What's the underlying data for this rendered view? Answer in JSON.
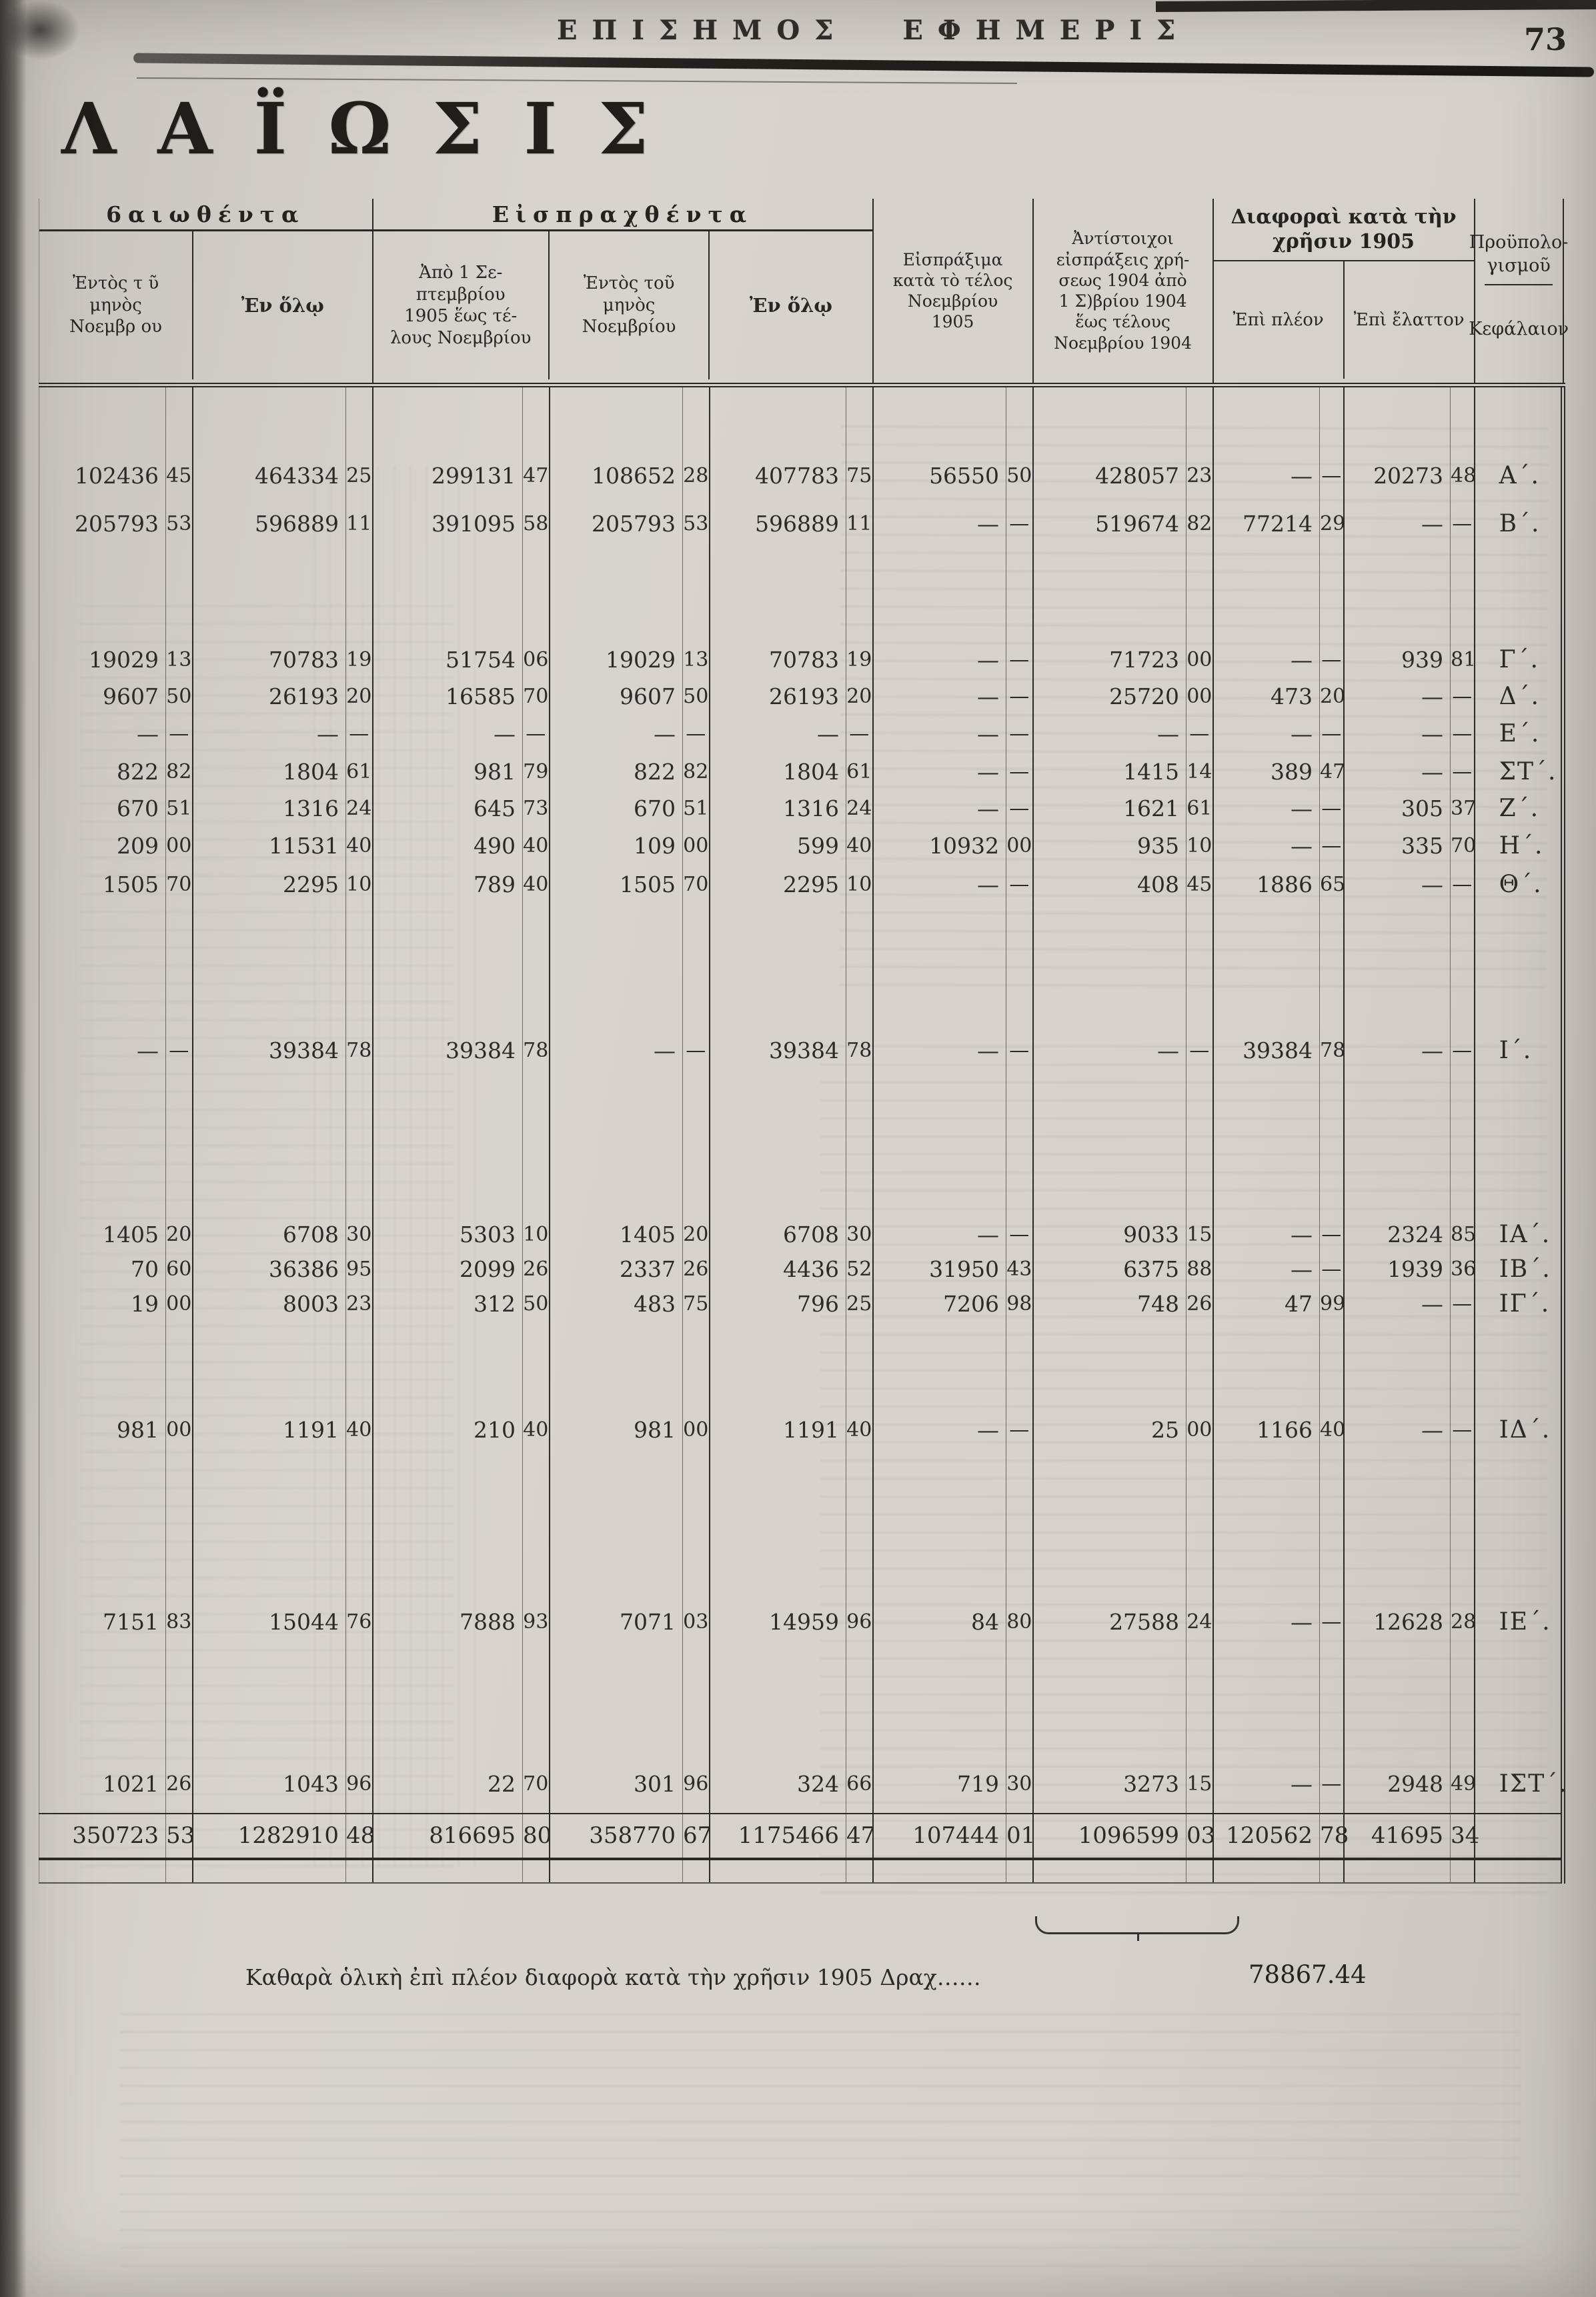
{
  "page": {
    "masthead": "ΕΠΙΣΗΜΟΣ ΕΦΗΜΕΡΙΣ",
    "page_number": "73",
    "title": "ΛΑΪΩΣΙΣ"
  },
  "table": {
    "group_certified": "6αιωθέντα",
    "group_collected": "Εἰσπραχθέντα",
    "col_within_month_certified": "Ἐντὸς τ ῦ\nμηνὸς\nΝοεμβρ ου",
    "col_total_certified": "Ἐν ὅλῳ",
    "col_since_september": "Ἀπὸ 1 Σε-\nπτεμβρίου\n1905 ἕως τέ-\nλους Νοεμβρίου",
    "col_within_month_collected": "Ἐντὸς τοῦ\nμηνὸς\nΝοεμβρίου",
    "col_total_collected": "Ἐν ὅλῳ",
    "col_collectible": "Εἰσπράξιμα\nκατὰ τὸ τέλος\nΝοεμβρίου\n1905",
    "col_corresponding_1904": "Ἀντίστοιχοι\nεἰσπράξεις χρή-\nσεως 1904 ἀπὸ\n1 Σ)βρίου 1904\nἕως τέλους\nΝοεμβρίου 1904",
    "group_differences": "Διαφοραὶ κατὰ τὴν\nχρῆσιν 1905",
    "col_surplus": "Ἐπὶ πλέον",
    "col_deficit": "Ἐπὶ ἔλαττον",
    "col_budget": "Προϋπολο-\nγισμοῦ",
    "col_chapter": "Κεφάλαιον",
    "rows": [
      {
        "cells": [
          [
            "102436",
            "45"
          ],
          [
            "464334",
            "25"
          ],
          [
            "299131",
            "47"
          ],
          [
            "108652",
            "28"
          ],
          [
            "407783",
            "75"
          ],
          [
            "56550",
            "50"
          ],
          [
            "428057",
            "23"
          ],
          [
            "—",
            "—"
          ],
          [
            "20273",
            "48"
          ]
        ],
        "chapter": "Α΄.",
        "total": false
      },
      {
        "cells": [
          [
            "205793",
            "53"
          ],
          [
            "596889",
            "11"
          ],
          [
            "391095",
            "58"
          ],
          [
            "205793",
            "53"
          ],
          [
            "596889",
            "11"
          ],
          [
            "—",
            "—"
          ],
          [
            "519674",
            "82"
          ],
          [
            "77214",
            "29"
          ],
          [
            "—",
            "—"
          ]
        ],
        "chapter": "Β΄.",
        "total": false
      },
      {
        "cells": [
          [
            "19029",
            "13"
          ],
          [
            "70783",
            "19"
          ],
          [
            "51754",
            "06"
          ],
          [
            "19029",
            "13"
          ],
          [
            "70783",
            "19"
          ],
          [
            "—",
            "—"
          ],
          [
            "71723",
            "00"
          ],
          [
            "—",
            "—"
          ],
          [
            "939",
            "81"
          ]
        ],
        "chapter": "Γ΄.",
        "total": false
      },
      {
        "cells": [
          [
            "9607",
            "50"
          ],
          [
            "26193",
            "20"
          ],
          [
            "16585",
            "70"
          ],
          [
            "9607",
            "50"
          ],
          [
            "26193",
            "20"
          ],
          [
            "—",
            "—"
          ],
          [
            "25720",
            "00"
          ],
          [
            "473",
            "20"
          ],
          [
            "—",
            "—"
          ]
        ],
        "chapter": "Δ΄.",
        "total": false
      },
      {
        "cells": [
          [
            "—",
            "—"
          ],
          [
            "—",
            "—"
          ],
          [
            "—",
            "—"
          ],
          [
            "—",
            "—"
          ],
          [
            "—",
            "—"
          ],
          [
            "—",
            "—"
          ],
          [
            "—",
            "—"
          ],
          [
            "—",
            "—"
          ],
          [
            "—",
            "—"
          ]
        ],
        "chapter": "Ε΄.",
        "total": false
      },
      {
        "cells": [
          [
            "822",
            "82"
          ],
          [
            "1804",
            "61"
          ],
          [
            "981",
            "79"
          ],
          [
            "822",
            "82"
          ],
          [
            "1804",
            "61"
          ],
          [
            "—",
            "—"
          ],
          [
            "1415",
            "14"
          ],
          [
            "389",
            "47"
          ],
          [
            "—",
            "—"
          ]
        ],
        "chapter": "ΣΤ΄.",
        "total": false
      },
      {
        "cells": [
          [
            "670",
            "51"
          ],
          [
            "1316",
            "24"
          ],
          [
            "645",
            "73"
          ],
          [
            "670",
            "51"
          ],
          [
            "1316",
            "24"
          ],
          [
            "—",
            "—"
          ],
          [
            "1621",
            "61"
          ],
          [
            "—",
            "—"
          ],
          [
            "305",
            "37"
          ]
        ],
        "chapter": "Ζ΄.",
        "total": false
      },
      {
        "cells": [
          [
            "209",
            "00"
          ],
          [
            "11531",
            "40"
          ],
          [
            "490",
            "40"
          ],
          [
            "109",
            "00"
          ],
          [
            "599",
            "40"
          ],
          [
            "10932",
            "00"
          ],
          [
            "935",
            "10"
          ],
          [
            "—",
            "—"
          ],
          [
            "335",
            "70"
          ]
        ],
        "chapter": "Η΄.",
        "total": false
      },
      {
        "cells": [
          [
            "1505",
            "70"
          ],
          [
            "2295",
            "10"
          ],
          [
            "789",
            "40"
          ],
          [
            "1505",
            "70"
          ],
          [
            "2295",
            "10"
          ],
          [
            "—",
            "—"
          ],
          [
            "408",
            "45"
          ],
          [
            "1886",
            "65"
          ],
          [
            "—",
            "—"
          ]
        ],
        "chapter": "Θ΄.",
        "total": false
      },
      {
        "cells": [
          [
            "—",
            "—"
          ],
          [
            "39384",
            "78"
          ],
          [
            "39384",
            "78"
          ],
          [
            "—",
            "—"
          ],
          [
            "39384",
            "78"
          ],
          [
            "—",
            "—"
          ],
          [
            "—",
            "—"
          ],
          [
            "39384",
            "78"
          ],
          [
            "—",
            "—"
          ]
        ],
        "chapter": "Ι΄.",
        "total": false
      },
      {
        "cells": [
          [
            "1405",
            "20"
          ],
          [
            "6708",
            "30"
          ],
          [
            "5303",
            "10"
          ],
          [
            "1405",
            "20"
          ],
          [
            "6708",
            "30"
          ],
          [
            "—",
            "—"
          ],
          [
            "9033",
            "15"
          ],
          [
            "—",
            "—"
          ],
          [
            "2324",
            "85"
          ]
        ],
        "chapter": "ΙΑ΄.",
        "total": false
      },
      {
        "cells": [
          [
            "70",
            "60"
          ],
          [
            "36386",
            "95"
          ],
          [
            "2099",
            "26"
          ],
          [
            "2337",
            "26"
          ],
          [
            "4436",
            "52"
          ],
          [
            "31950",
            "43"
          ],
          [
            "6375",
            "88"
          ],
          [
            "—",
            "—"
          ],
          [
            "1939",
            "36"
          ]
        ],
        "chapter": "ΙΒ΄.",
        "total": false
      },
      {
        "cells": [
          [
            "19",
            "00"
          ],
          [
            "8003",
            "23"
          ],
          [
            "312",
            "50"
          ],
          [
            "483",
            "75"
          ],
          [
            "796",
            "25"
          ],
          [
            "7206",
            "98"
          ],
          [
            "748",
            "26"
          ],
          [
            "47",
            "99"
          ],
          [
            "—",
            "—"
          ]
        ],
        "chapter": "ΙΓ΄.",
        "total": false
      },
      {
        "cells": [
          [
            "981",
            "00"
          ],
          [
            "1191",
            "40"
          ],
          [
            "210",
            "40"
          ],
          [
            "981",
            "00"
          ],
          [
            "1191",
            "40"
          ],
          [
            "—",
            "—"
          ],
          [
            "25",
            "00"
          ],
          [
            "1166",
            "40"
          ],
          [
            "—",
            "—"
          ]
        ],
        "chapter": "ΙΔ΄.",
        "total": false
      },
      {
        "cells": [
          [
            "7151",
            "83"
          ],
          [
            "15044",
            "76"
          ],
          [
            "7888",
            "93"
          ],
          [
            "7071",
            "03"
          ],
          [
            "14959",
            "96"
          ],
          [
            "84",
            "80"
          ],
          [
            "27588",
            "24"
          ],
          [
            "—",
            "—"
          ],
          [
            "12628",
            "28"
          ]
        ],
        "chapter": "ΙΕ΄.",
        "total": false
      },
      {
        "cells": [
          [
            "1021",
            "26"
          ],
          [
            "1043",
            "96"
          ],
          [
            "22",
            "70"
          ],
          [
            "301",
            "96"
          ],
          [
            "324",
            "66"
          ],
          [
            "719",
            "30"
          ],
          [
            "3273",
            "15"
          ],
          [
            "—",
            "—"
          ],
          [
            "2948",
            "49"
          ]
        ],
        "chapter": "ΙΣΤ΄.",
        "total": false
      },
      {
        "cells": [
          [
            "350723",
            "53"
          ],
          [
            "1282910",
            "48"
          ],
          [
            "816695",
            "80"
          ],
          [
            "358770",
            "67"
          ],
          [
            "1175466",
            "47"
          ],
          [
            "107444",
            "01"
          ],
          [
            "1096599",
            "03"
          ],
          [
            "120562",
            "78"
          ],
          [
            "41695",
            "34"
          ]
        ],
        "chapter": "",
        "total": true
      }
    ]
  },
  "footer": {
    "note": "Καθαρὰ ὁλικὴ ἐπὶ πλέον διαφορὰ κατὰ τὴν χρῆσιν 1905  Δραχ……",
    "amount": "78867.44"
  }
}
